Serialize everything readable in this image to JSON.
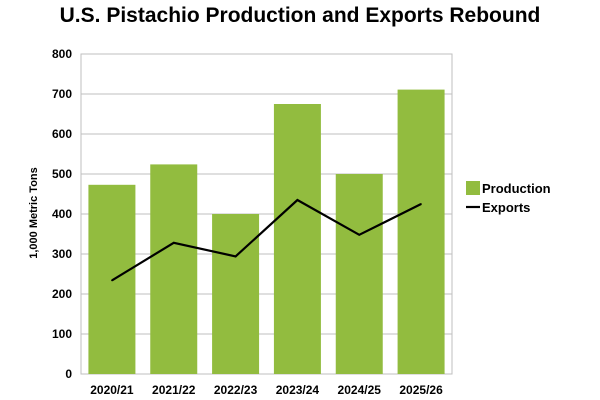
{
  "chart_data": {
    "type": "bar",
    "title": "U.S. Pistachio Production and Exports Rebound",
    "xlabel": "",
    "ylabel": "1,000 Metric Tons",
    "ylim": [
      0,
      800
    ],
    "yticks": [
      "0",
      "100",
      "200",
      "300",
      "400",
      "500",
      "600",
      "700",
      "800"
    ],
    "categories": [
      "2020/21",
      "2021/22",
      "2022/23",
      "2023/24",
      "2024/25",
      "2025/26"
    ],
    "grid": true,
    "legend_position": "right",
    "series": [
      {
        "name": "Production",
        "type": "bar",
        "color": "#92bc3f",
        "values": [
          473,
          524,
          400,
          675,
          500,
          711
        ]
      },
      {
        "name": "Exports",
        "type": "line",
        "color": "#000000",
        "values": [
          234,
          328,
          294,
          435,
          348,
          425
        ]
      }
    ]
  }
}
